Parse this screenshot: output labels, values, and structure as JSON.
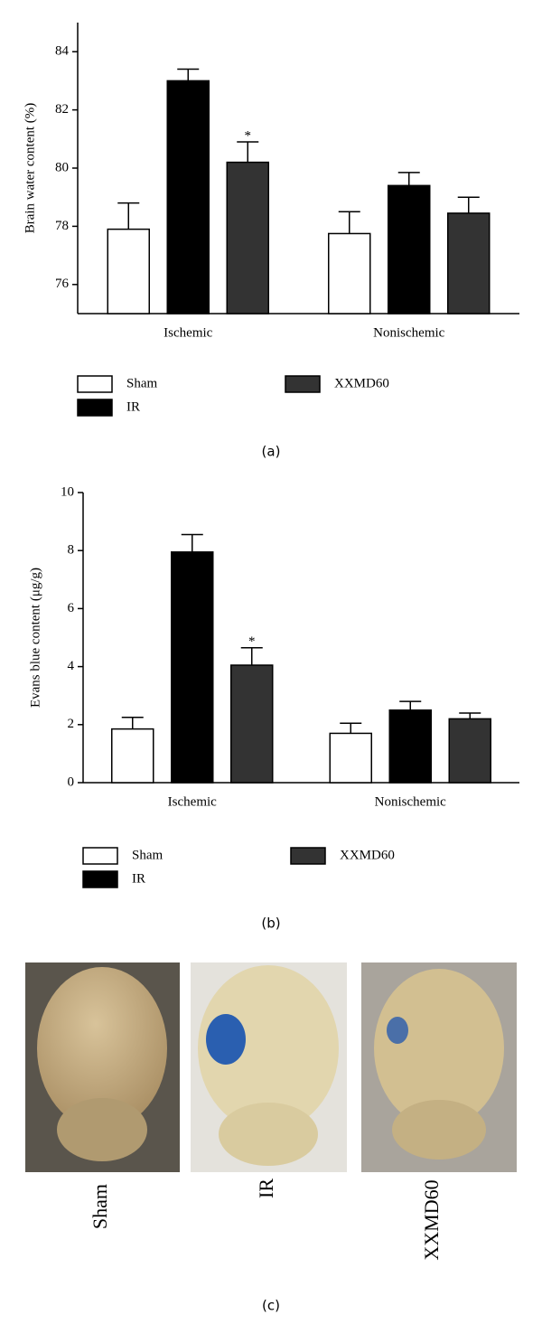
{
  "chart_data": [
    {
      "type": "bar",
      "caption": "(a)",
      "y_label": "Brain water content (%)",
      "categories": [
        "Ischemic",
        "Nonischemic"
      ],
      "series": [
        {
          "name": "Sham",
          "color": "#ffffff",
          "values": [
            77.9,
            77.75
          ],
          "errors": [
            0.9,
            0.75
          ]
        },
        {
          "name": "IR",
          "color": "#000000",
          "values": [
            83.0,
            79.4
          ],
          "errors": [
            0.4,
            0.45
          ]
        },
        {
          "name": "XXMD60",
          "color": "#333333",
          "values": [
            80.2,
            78.45
          ],
          "errors": [
            0.7,
            0.55
          ],
          "markers": [
            "*",
            null
          ]
        }
      ],
      "ylim": [
        75,
        85
      ],
      "yticks": [
        76,
        78,
        80,
        82,
        84
      ],
      "grid": false
    },
    {
      "type": "bar",
      "caption": "(b)",
      "y_label": "Evans blue content (μg/g)",
      "categories": [
        "Ischemic",
        "Nonischemic"
      ],
      "series": [
        {
          "name": "Sham",
          "color": "#ffffff",
          "values": [
            1.85,
            1.7
          ],
          "errors": [
            0.4,
            0.35
          ]
        },
        {
          "name": "IR",
          "color": "#000000",
          "values": [
            7.95,
            2.5
          ],
          "errors": [
            0.6,
            0.3
          ]
        },
        {
          "name": "XXMD60",
          "color": "#333333",
          "values": [
            4.05,
            2.2
          ],
          "errors": [
            0.6,
            0.2
          ],
          "markers": [
            "*",
            null
          ]
        }
      ],
      "ylim": [
        0,
        10
      ],
      "yticks": [
        0,
        2,
        4,
        6,
        8,
        10
      ],
      "grid": false
    }
  ],
  "photos": {
    "caption": "(c)",
    "labels": [
      "Sham",
      "IR",
      "XXMD60"
    ]
  }
}
